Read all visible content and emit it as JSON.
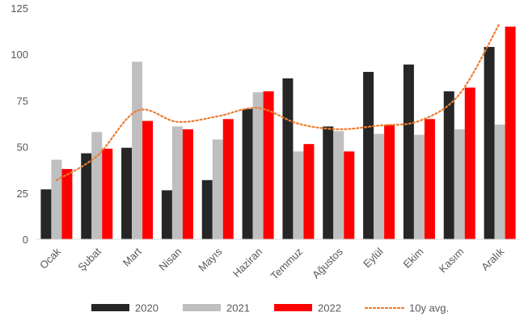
{
  "chart_data": {
    "type": "bar",
    "categories": [
      "Ocak",
      "Şubat",
      "Mart",
      "Nisan",
      "Mayıs",
      "Haziran",
      "Temmuz",
      "Ağustos",
      "Eylül",
      "Ekim",
      "Kasım",
      "Aralık"
    ],
    "series": [
      {
        "name": "2020",
        "color": "#262626",
        "values": [
          27,
          46.5,
          49.5,
          26.5,
          32,
          70.5,
          87,
          61,
          90.5,
          94.5,
          80,
          104
        ]
      },
      {
        "name": "2021",
        "color": "#BFBFBF",
        "values": [
          43,
          58,
          96,
          61,
          54,
          79.5,
          47.5,
          58.5,
          57,
          56.5,
          59.5,
          62
        ]
      },
      {
        "name": "2022",
        "color": "#FF0000",
        "values": [
          38,
          49,
          64,
          59.5,
          65,
          80,
          51.5,
          47.5,
          62,
          65,
          82,
          115
        ]
      }
    ],
    "line_series": {
      "name": "10y avg.",
      "color": "#ED7D31",
      "style": "dotted",
      "values": [
        32,
        45,
        69.5,
        63.5,
        66.5,
        71,
        62.5,
        59.5,
        61.5,
        64,
        78.5,
        117
      ]
    },
    "yticks": [
      0,
      25,
      50,
      75,
      100,
      125
    ],
    "ylim": [
      0,
      125
    ],
    "grid": false,
    "legend": "bottom"
  }
}
